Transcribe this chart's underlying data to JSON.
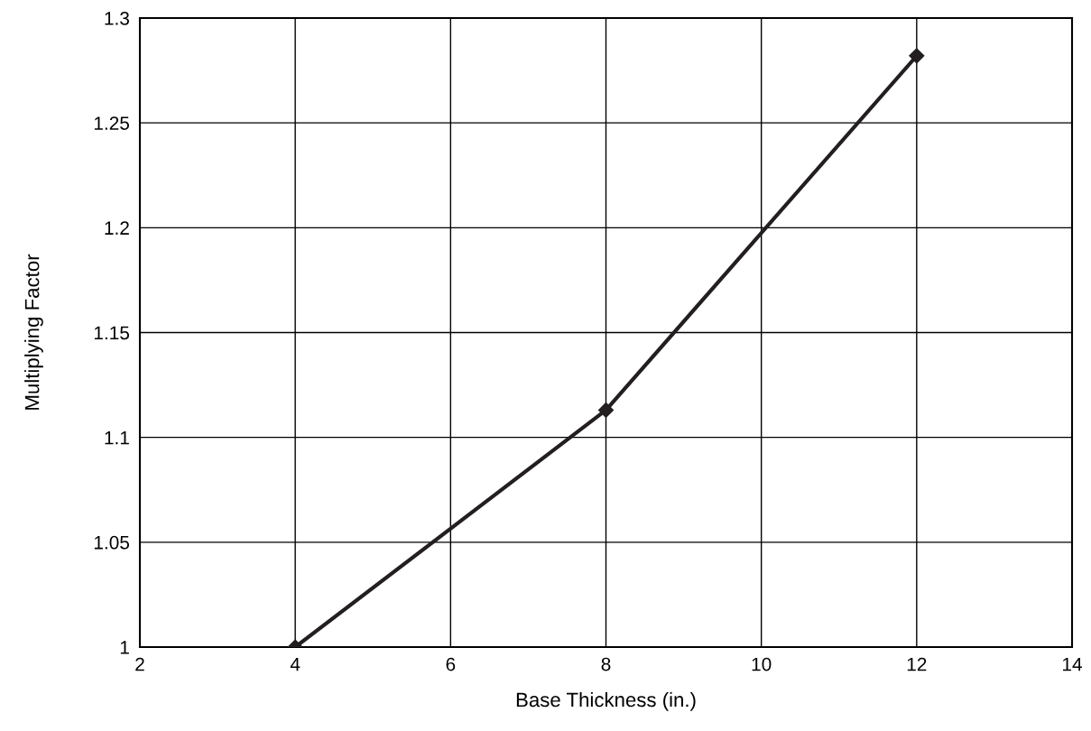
{
  "chart_data": {
    "type": "line",
    "xlabel": "Base Thickness (in.)",
    "ylabel": "Multiplying Factor",
    "x": [
      4,
      8,
      12
    ],
    "series": [
      {
        "color": "#231f20",
        "values": [
          1.0,
          1.113,
          1.282
        ]
      }
    ],
    "xlim": [
      2,
      14
    ],
    "xticks": [
      2,
      4,
      6,
      8,
      10,
      12,
      14
    ],
    "ylim": [
      1,
      1.3
    ],
    "yticks": [
      1,
      1.05,
      1.1,
      1.15,
      1.2,
      1.25,
      1.3
    ],
    "grid": true,
    "marker": "diamond",
    "line_style": "solid",
    "legend": false
  }
}
